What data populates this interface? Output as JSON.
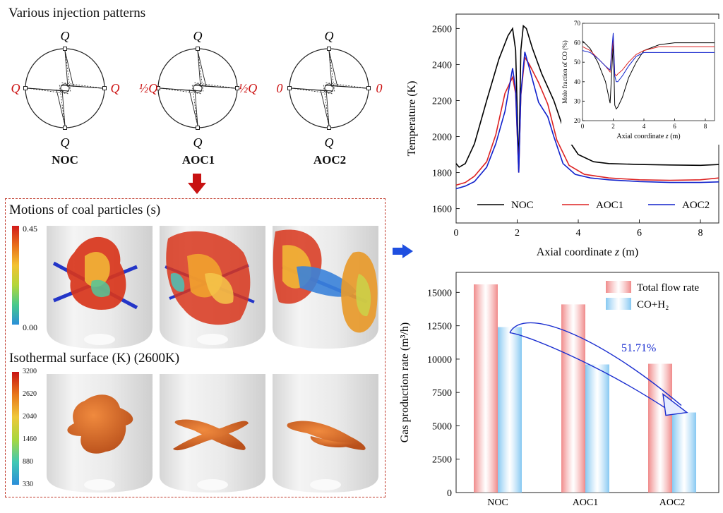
{
  "patterns": {
    "title": "Various injection patterns",
    "items": [
      {
        "name": "NOC",
        "top": "Q",
        "bottom": "Q",
        "left": "Q",
        "right": "Q"
      },
      {
        "name": "AOC1",
        "top": "Q",
        "bottom": "Q",
        "left": "½Q",
        "right": "½Q"
      },
      {
        "name": "AOC2",
        "top": "Q",
        "bottom": "Q",
        "left": "0",
        "right": "0"
      }
    ],
    "accent": "#cc1111"
  },
  "coal": {
    "title": "Motions of coal particles (s)",
    "scale_max": "0.45",
    "scale_min": "0.00"
  },
  "iso": {
    "title": "Isothermal surface (K) (2600K)",
    "ticks": [
      "3200",
      "2620",
      "2040",
      "1460",
      "880",
      "330"
    ]
  },
  "chart_data": [
    {
      "type": "line",
      "xlabel": "Axial coordinate z (m)",
      "ylabel": "Temperature (K)",
      "xlim": [
        0,
        8.6
      ],
      "ylim": [
        1520,
        2680
      ],
      "xticks": [
        "0",
        "2",
        "4",
        "6",
        "8"
      ],
      "yticks": [
        "1600",
        "1800",
        "2000",
        "2200",
        "2400",
        "2600"
      ],
      "legend_position": "bottom",
      "series": [
        {
          "name": "NOC",
          "color": "#000000",
          "x": [
            0,
            0.1,
            0.3,
            0.6,
            1.0,
            1.4,
            1.7,
            1.85,
            1.95,
            2.05,
            2.12,
            2.2,
            2.3,
            2.5,
            2.8,
            3.2,
            3.6,
            4.0,
            4.5,
            5.0,
            6.0,
            7.0,
            8.0,
            8.6
          ],
          "y": [
            1850,
            1830,
            1850,
            1960,
            2200,
            2430,
            2560,
            2600,
            2480,
            1820,
            2480,
            2615,
            2600,
            2490,
            2350,
            2200,
            2000,
            1900,
            1860,
            1850,
            1845,
            1842,
            1840,
            1845
          ]
        },
        {
          "name": "AOC1",
          "color": "#dd2222",
          "x": [
            0,
            0.3,
            0.6,
            1.0,
            1.3,
            1.6,
            1.85,
            1.95,
            2.05,
            2.12,
            2.25,
            2.4,
            2.7,
            3.0,
            3.3,
            3.7,
            4.2,
            5.0,
            6.0,
            7.0,
            8.0,
            8.6
          ],
          "y": [
            1730,
            1745,
            1780,
            1860,
            2010,
            2240,
            2330,
            2240,
            1800,
            2230,
            2440,
            2400,
            2300,
            2180,
            1980,
            1840,
            1790,
            1770,
            1760,
            1757,
            1760,
            1770
          ]
        },
        {
          "name": "AOC2",
          "color": "#1122cc",
          "x": [
            0,
            0.3,
            0.6,
            1.0,
            1.3,
            1.6,
            1.85,
            1.95,
            2.05,
            2.12,
            2.25,
            2.4,
            2.7,
            3.0,
            3.2,
            3.5,
            3.9,
            4.4,
            5.0,
            6.0,
            7.0,
            8.0,
            8.6
          ],
          "y": [
            1710,
            1725,
            1750,
            1830,
            1960,
            2140,
            2380,
            2260,
            1800,
            2240,
            2470,
            2380,
            2190,
            2110,
            2000,
            1850,
            1790,
            1770,
            1760,
            1750,
            1745,
            1745,
            1748
          ]
        }
      ]
    },
    {
      "type": "line",
      "xlabel": "Axial coordinate z (m)",
      "ylabel": "Mole fraction of CO (%)",
      "xlim": [
        0,
        8.6
      ],
      "ylim": [
        20,
        70
      ],
      "xticks": [
        "0",
        "2",
        "4",
        "6",
        "8"
      ],
      "yticks": [
        "20",
        "30",
        "40",
        "50",
        "60",
        "70"
      ],
      "series": [
        {
          "name": "NOC",
          "color": "#000000",
          "x": [
            0,
            0.5,
            1.0,
            1.5,
            1.8,
            2.0,
            2.1,
            2.2,
            2.3,
            2.6,
            3.0,
            3.5,
            4.0,
            5.0,
            6.0,
            7.0,
            8.6
          ],
          "y": [
            61,
            57,
            50,
            40,
            29,
            60,
            28,
            26,
            27,
            32,
            42,
            50,
            56,
            59,
            60,
            60,
            60
          ]
        },
        {
          "name": "AOC1",
          "color": "#dd2222",
          "x": [
            0,
            0.5,
            1.0,
            1.5,
            1.8,
            2.0,
            2.1,
            2.2,
            2.3,
            2.6,
            3.0,
            3.5,
            4.0,
            5.0,
            6.0,
            7.0,
            8.6
          ],
          "y": [
            58,
            56,
            52,
            48,
            45,
            62,
            44,
            43,
            44,
            46,
            50,
            54,
            56,
            58,
            58,
            58,
            58
          ]
        },
        {
          "name": "AOC2",
          "color": "#1122cc",
          "x": [
            0,
            0.5,
            1.0,
            1.5,
            1.8,
            2.0,
            2.1,
            2.2,
            2.3,
            2.6,
            3.0,
            3.5,
            4.0,
            5.0,
            6.0,
            7.0,
            8.6
          ],
          "y": [
            56,
            55,
            52,
            48,
            46,
            65,
            43,
            40,
            40,
            43,
            48,
            53,
            55,
            55,
            55,
            55,
            55
          ]
        }
      ]
    },
    {
      "type": "bar",
      "ylabel": "Gas production rate (m³/h)",
      "categories": [
        "NOC",
        "AOC1",
        "AOC2"
      ],
      "ylim": [
        0,
        16500
      ],
      "yticks": [
        "0",
        "2500",
        "5000",
        "7500",
        "10000",
        "12500",
        "15000"
      ],
      "legend_position": "top-right",
      "series": [
        {
          "name": "Total flow rate",
          "color": "#f08a8a",
          "values": [
            15600,
            14100,
            9650
          ]
        },
        {
          "name": "CO+H₂",
          "color": "#86c8f2",
          "values": [
            12400,
            9600,
            6000
          ]
        }
      ],
      "annotation": "51.71%"
    }
  ]
}
